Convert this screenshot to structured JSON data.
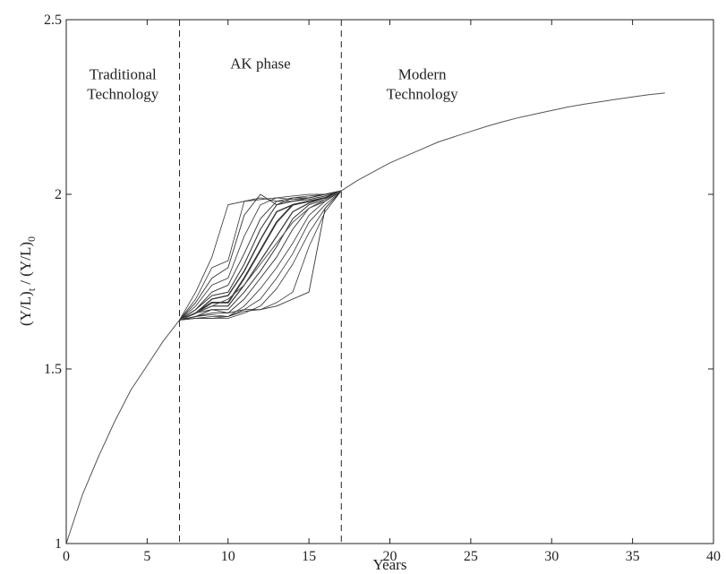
{
  "chart_data": {
    "type": "line",
    "xlabel": "Years",
    "ylabel": "(Y/L)t / (Y/L)0",
    "xlim": [
      0,
      40
    ],
    "ylim": [
      1,
      2.5
    ],
    "xticks": [
      0,
      5,
      10,
      15,
      20,
      25,
      30,
      35,
      40
    ],
    "yticks": [
      1,
      1.5,
      2,
      2.5
    ],
    "xtick_labels": [
      "0",
      "5",
      "10",
      "15",
      "20",
      "25",
      "30",
      "35",
      "40"
    ],
    "ytick_labels": [
      "1",
      "1.5",
      "2",
      "2.5"
    ],
    "grid": false,
    "phase_boundaries": [
      7,
      17
    ],
    "regions": [
      {
        "lines": [
          "Traditional",
          "Technology"
        ],
        "x": 3.5,
        "y": 2.33
      },
      {
        "lines": [
          "AK phase"
        ],
        "x": 12,
        "y": 2.36
      },
      {
        "lines": [
          "Modern",
          "Technology"
        ],
        "x": 22,
        "y": 2.33
      }
    ],
    "main_curve": {
      "x": [
        0,
        1,
        2,
        3,
        4,
        5,
        6,
        7,
        8,
        9,
        10,
        11,
        12,
        13,
        14,
        15,
        16,
        17,
        18,
        19,
        20,
        21,
        22,
        23,
        24,
        25,
        26,
        27,
        28,
        29,
        30,
        31,
        32,
        33,
        34,
        35,
        36,
        37
      ],
      "y": [
        1.0,
        1.14,
        1.25,
        1.35,
        1.44,
        1.51,
        1.58,
        1.64,
        1.66,
        1.68,
        1.7,
        1.74,
        1.8,
        1.86,
        1.92,
        1.96,
        1.985,
        2.01,
        2.04,
        2.065,
        2.09,
        2.11,
        2.13,
        2.15,
        2.165,
        2.18,
        2.195,
        2.208,
        2.22,
        2.23,
        2.24,
        2.25,
        2.258,
        2.265,
        2.272,
        2.279,
        2.285,
        2.29
      ]
    },
    "ak_paths": [
      {
        "x": [
          7,
          8,
          9,
          10,
          11,
          12,
          13,
          14,
          15,
          16,
          17
        ],
        "y": [
          1.64,
          1.72,
          1.82,
          1.97,
          1.98,
          1.985,
          1.99,
          1.995,
          2.0,
          2.0,
          2.01
        ],
        "w": 0.8
      },
      {
        "x": [
          7,
          8,
          9,
          10,
          11,
          12,
          13,
          14,
          15,
          16,
          17
        ],
        "y": [
          1.64,
          1.7,
          1.79,
          1.81,
          1.98,
          1.99,
          1.98,
          1.99,
          1.995,
          2.0,
          2.01
        ],
        "w": 0.8
      },
      {
        "x": [
          7,
          8,
          9,
          10,
          11,
          12,
          13,
          14,
          15,
          16,
          17
        ],
        "y": [
          1.64,
          1.69,
          1.76,
          1.79,
          1.94,
          2.0,
          1.97,
          1.99,
          1.99,
          2.0,
          2.01
        ],
        "w": 0.9
      },
      {
        "x": [
          7,
          8,
          9,
          10,
          11,
          12,
          13,
          14,
          15,
          16,
          17
        ],
        "y": [
          1.64,
          1.68,
          1.74,
          1.76,
          1.88,
          1.97,
          1.99,
          1.985,
          1.99,
          2.0,
          2.01
        ],
        "w": 0.8
      },
      {
        "x": [
          7,
          8,
          9,
          10,
          11,
          12,
          13,
          14,
          15,
          16,
          17
        ],
        "y": [
          1.64,
          1.67,
          1.72,
          1.74,
          1.83,
          1.93,
          1.98,
          1.98,
          1.99,
          2.0,
          2.01
        ],
        "w": 0.9
      },
      {
        "x": [
          7,
          8,
          9,
          10,
          11,
          12,
          13,
          14,
          15,
          16,
          17
        ],
        "y": [
          1.64,
          1.67,
          1.71,
          1.72,
          1.8,
          1.9,
          1.97,
          1.98,
          1.985,
          1.995,
          2.01
        ],
        "w": 1.0
      },
      {
        "x": [
          7,
          8,
          9,
          10,
          11,
          12,
          13,
          14,
          15,
          16,
          17
        ],
        "y": [
          1.64,
          1.66,
          1.7,
          1.71,
          1.78,
          1.87,
          1.95,
          1.97,
          1.98,
          1.99,
          2.01
        ],
        "w": 1.4
      },
      {
        "x": [
          7,
          8,
          9,
          10,
          11,
          12,
          13,
          14,
          15,
          16,
          17
        ],
        "y": [
          1.64,
          1.66,
          1.69,
          1.69,
          1.76,
          1.84,
          1.92,
          1.97,
          1.98,
          1.99,
          2.01
        ],
        "w": 1.8
      },
      {
        "x": [
          7,
          8,
          9,
          10,
          11,
          12,
          13,
          14,
          15,
          16,
          17
        ],
        "y": [
          1.64,
          1.66,
          1.68,
          1.68,
          1.74,
          1.81,
          1.88,
          1.95,
          1.975,
          1.99,
          2.01
        ],
        "w": 1.2
      },
      {
        "x": [
          7,
          8,
          9,
          10,
          11,
          12,
          13,
          14,
          15,
          16,
          17
        ],
        "y": [
          1.64,
          1.65,
          1.67,
          1.67,
          1.72,
          1.78,
          1.85,
          1.93,
          1.97,
          1.985,
          2.01
        ],
        "w": 1.0
      },
      {
        "x": [
          7,
          8,
          9,
          10,
          11,
          12,
          13,
          14,
          15,
          16,
          17
        ],
        "y": [
          1.64,
          1.65,
          1.66,
          1.66,
          1.7,
          1.76,
          1.82,
          1.9,
          1.96,
          1.98,
          2.01
        ],
        "w": 0.9
      },
      {
        "x": [
          7,
          8,
          9,
          10,
          11,
          12,
          13,
          14,
          15,
          16,
          17
        ],
        "y": [
          1.64,
          1.65,
          1.655,
          1.65,
          1.68,
          1.73,
          1.79,
          1.86,
          1.94,
          1.98,
          2.01
        ],
        "w": 0.8
      },
      {
        "x": [
          7,
          8,
          9,
          10,
          11,
          12,
          13,
          14,
          15,
          16,
          17
        ],
        "y": [
          1.64,
          1.645,
          1.65,
          1.65,
          1.67,
          1.7,
          1.76,
          1.83,
          1.92,
          1.97,
          2.01
        ],
        "w": 0.8
      },
      {
        "x": [
          7,
          8,
          9,
          10,
          11,
          12,
          13,
          14,
          15,
          16,
          17
        ],
        "y": [
          1.64,
          1.645,
          1.645,
          1.645,
          1.66,
          1.68,
          1.73,
          1.8,
          1.89,
          1.96,
          2.01
        ],
        "w": 0.8
      },
      {
        "x": [
          7,
          8,
          9,
          10,
          11,
          12,
          13,
          14,
          15,
          16,
          17
        ],
        "y": [
          1.64,
          1.645,
          1.645,
          1.65,
          1.665,
          1.67,
          1.69,
          1.72,
          1.85,
          1.95,
          2.01
        ],
        "w": 0.8
      },
      {
        "x": [
          7,
          8,
          9,
          10,
          11,
          12,
          13,
          14,
          15,
          16,
          17
        ],
        "y": [
          1.64,
          1.66,
          1.67,
          1.66,
          1.67,
          1.67,
          1.68,
          1.7,
          1.72,
          1.96,
          2.01
        ],
        "w": 0.9
      }
    ]
  }
}
